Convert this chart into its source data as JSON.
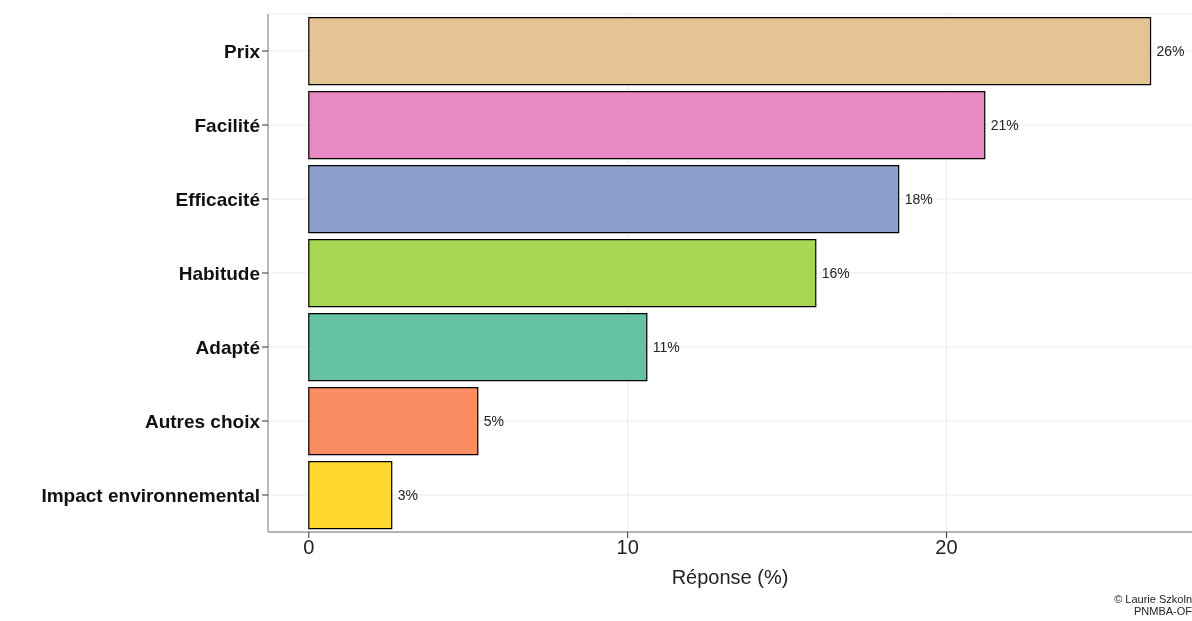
{
  "chart_data": {
    "type": "bar",
    "orientation": "horizontal",
    "xlabel": "Réponse (%)",
    "categories": [
      "Prix",
      "Facilité",
      "Efficacité",
      "Habitude",
      "Adapté",
      "Autres choix",
      "Impact environnemental"
    ],
    "values": [
      26.4,
      21.2,
      18.5,
      15.9,
      10.6,
      5.3,
      2.6
    ],
    "value_labels": [
      "26%",
      "21%",
      "18%",
      "16%",
      "11%",
      "5%",
      "3%"
    ],
    "colors": [
      "#e5c494",
      "#e78ac3",
      "#8da0cb",
      "#a6d854",
      "#66c2a5",
      "#fc8d62",
      "#ffd92f"
    ],
    "xlim": [
      -1.28,
      27.7
    ],
    "xticks": [
      0,
      10,
      20
    ],
    "grid": true,
    "annotations": [
      "© Laurie Szkoln",
      "PNMBA-OF"
    ]
  }
}
